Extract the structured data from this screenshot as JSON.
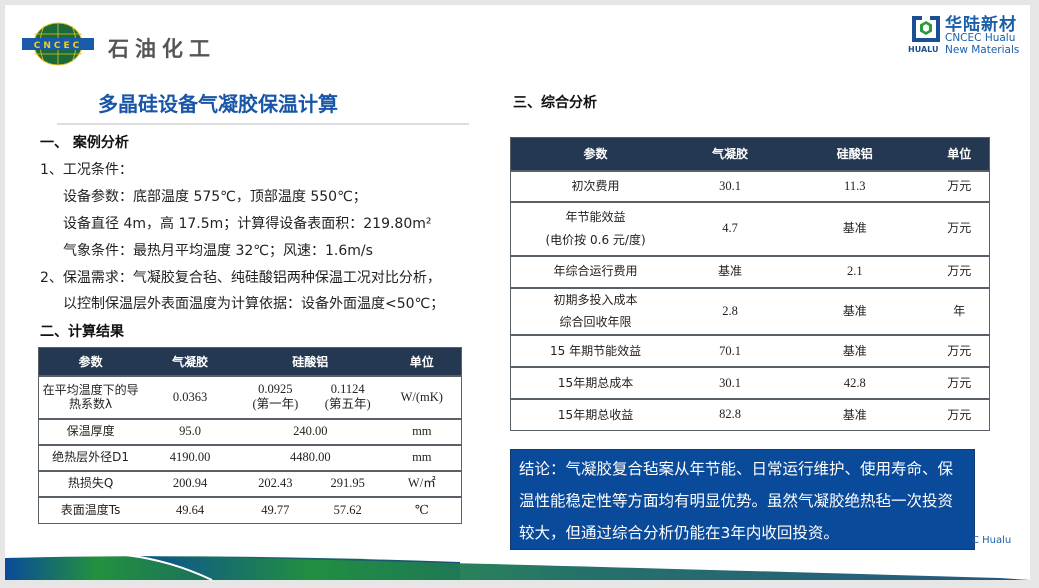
{
  "header": {
    "logo_left_text": "石油化工",
    "logo_left_abbrev": "CNCEC",
    "logo_right_cn": "华陆新材",
    "logo_right_en1": "CNCEC Hualu",
    "logo_right_en2": "New Materials",
    "logo_right_word": "HUALU",
    "watermark": "C Hualu"
  },
  "title": "多晶硅设备气凝胶保温计算",
  "section1": {
    "heading": "一、 案例分析",
    "lines": [
      "1、工况条件：",
      "设备参数：底部温度 575℃，顶部温度 550℃；",
      "设备直径 4m，高 17.5m；计算得设备表面积：219.80m²",
      "气象条件：最热月平均温度 32℃；风速：1.6m/s",
      "2、保温需求：气凝胶复合毡、纯硅酸铝两种保温工况对比分析，",
      "以控制保温层外表面温度为计算依据：设备外面温度<50℃；"
    ]
  },
  "section2": {
    "heading": "二、计算结果",
    "headers": [
      "参数",
      "气凝胶",
      "硅酸铝",
      "单位"
    ],
    "rows": [
      {
        "param": "在平均温度下的导热系数λ",
        "aerogel": "0.0363",
        "si1": "0.0925\n(第一年)",
        "si2": "0.1124\n(第五年)",
        "unit": "W/(mK)"
      },
      {
        "param": "保温厚度",
        "aerogel": "95.0",
        "si": "240.00",
        "unit": "mm"
      },
      {
        "param": "绝热层外径D1",
        "aerogel": "4190.00",
        "si": "4480.00",
        "unit": "mm"
      },
      {
        "param": "热损失Q",
        "aerogel": "200.94",
        "si1": "202.43",
        "si2": "291.95",
        "unit": "W/㎡"
      },
      {
        "param": "表面温度Ts",
        "aerogel": "49.64",
        "si1": "49.77",
        "si2": "57.62",
        "unit": "℃"
      }
    ]
  },
  "section3": {
    "heading": "三、综合分析",
    "headers": [
      "参数",
      "气凝胶",
      "硅酸铝",
      "单位"
    ],
    "rows": [
      {
        "param": "初次费用",
        "aerogel": "30.1",
        "si": "11.3",
        "unit": "万元"
      },
      {
        "param": "年节能效益\n(电价按 0.6 元/度)",
        "aerogel": "4.7",
        "si": "基准",
        "unit": "万元"
      },
      {
        "param": "年综合运行费用",
        "aerogel": "基准",
        "si": "2.1",
        "unit": "万元"
      },
      {
        "param": "初期多投入成本\n综合回收年限",
        "aerogel": "2.8",
        "si": "基准",
        "unit": "年"
      },
      {
        "param": "15 年期节能效益",
        "aerogel": "70.1",
        "si": "基准",
        "unit": "万元"
      },
      {
        "param": "15年期总成本",
        "aerogel": "30.1",
        "si": "42.8",
        "unit": "万元"
      },
      {
        "param": "15年期总收益",
        "aerogel": "82.8",
        "si": "基准",
        "unit": "万元"
      }
    ]
  },
  "conclusion": "结论：气凝胶复合毡案从年节能、日常运行维护、使用寿命、保温性能稳定性等方面均有明显优势。虽然气凝胶绝热毡一次投资较大，但通过综合分析仍能在3年内收回投资。",
  "colors": {
    "title": "#1a56a8",
    "table_header": "#243852",
    "conclusion_bg": "#0a4a9a",
    "swoosh_green": "#22913f"
  }
}
